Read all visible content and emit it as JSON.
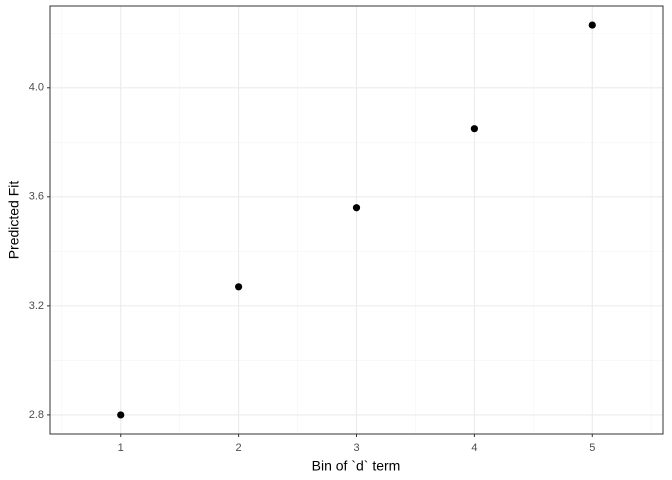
{
  "chart_data": {
    "type": "scatter",
    "x_label": "Bin of `d` term",
    "y_label": "Predicted Fit",
    "x": [
      1,
      2,
      3,
      4,
      5
    ],
    "values": [
      2.8,
      3.27,
      3.56,
      3.85,
      4.23
    ],
    "color": "#000000",
    "xlim": [
      0.4,
      5.6
    ],
    "xticks": [
      1,
      2,
      3,
      4,
      5
    ],
    "ylim": [
      2.73,
      4.3
    ],
    "yticks": [
      2.8,
      3.2,
      3.6,
      {
        "value": 4,
        "label": "4.0"
      }
    ],
    "grid": true
  }
}
